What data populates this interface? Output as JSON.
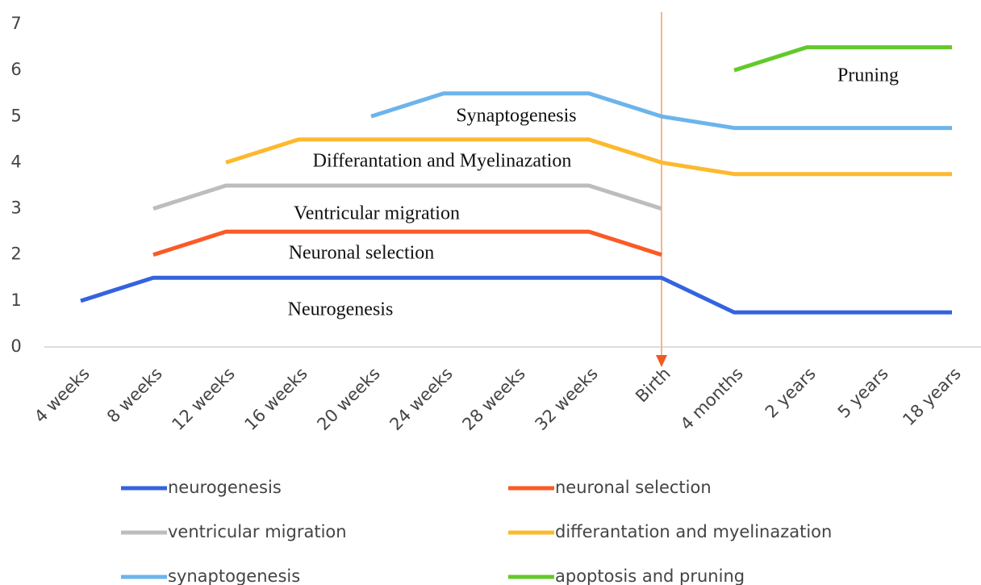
{
  "chart_data": {
    "type": "line",
    "categories": [
      "4 weeks",
      "8 weeks",
      "12 weeks",
      "16 weeks",
      "20 weeks",
      "24 weeks",
      "28 weeks",
      "32 weeks",
      "Birth",
      "4 months",
      "2 years",
      "5 years",
      "18 years"
    ],
    "series": [
      {
        "name": "neurogenesis",
        "color": "#3463e0",
        "values": [
          1,
          1.5,
          1.5,
          1.5,
          1.5,
          1.5,
          1.5,
          1.5,
          1.5,
          0.75,
          0.75,
          0.75,
          0.75
        ]
      },
      {
        "name": "neuronal selection",
        "color": "#fb5a25",
        "values": [
          null,
          2,
          2.5,
          2.5,
          2.5,
          2.5,
          2.5,
          2.5,
          2,
          null,
          null,
          null,
          null
        ]
      },
      {
        "name": "ventricular migration",
        "color": "#bdbdbd",
        "values": [
          null,
          3,
          3.5,
          3.5,
          3.5,
          3.5,
          3.5,
          3.5,
          3,
          null,
          null,
          null,
          null
        ]
      },
      {
        "name": "differantation and myelinazation",
        "color": "#fdb92e",
        "values": [
          null,
          null,
          4,
          4.5,
          4.5,
          4.5,
          4.5,
          4.5,
          4,
          3.75,
          3.75,
          3.75,
          3.75
        ]
      },
      {
        "name": "synaptogenesis",
        "color": "#6cb4ec",
        "values": [
          null,
          null,
          null,
          null,
          5,
          5.5,
          5.5,
          5.5,
          5,
          4.75,
          4.75,
          4.75,
          4.75
        ]
      },
      {
        "name": "apoptosis and pruning",
        "color": "#63c92a",
        "values": [
          null,
          null,
          null,
          null,
          null,
          null,
          null,
          null,
          null,
          6,
          6.5,
          6.5,
          6.5
        ]
      }
    ],
    "annotations": [
      "Pruning",
      "Synaptogenesis",
      "Differantation and Myelinazation",
      "Ventricular migration",
      "Neuronal selection",
      "Neurogenesis"
    ],
    "ylim": [
      0,
      7
    ],
    "yticks": [
      0,
      1,
      2,
      3,
      4,
      5,
      6,
      7
    ],
    "grid": false,
    "legend": "bottom"
  }
}
